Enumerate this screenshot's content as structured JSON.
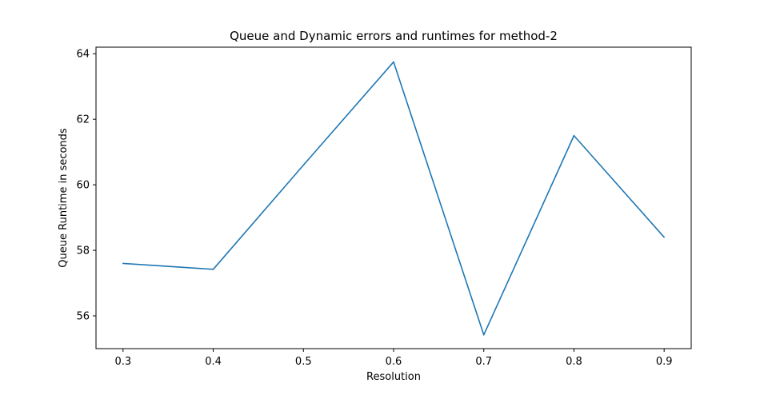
{
  "chart_data": {
    "type": "line",
    "title": "Queue and Dynamic errors and runtimes for method-2",
    "xlabel": "Resolution",
    "ylabel": "Queue Runtime in seconds",
    "x": [
      0.3,
      0.4,
      0.5,
      0.6,
      0.7,
      0.8,
      0.9
    ],
    "series": [
      {
        "values": [
          57.6,
          57.42,
          60.6,
          63.75,
          55.42,
          61.5,
          58.4
        ],
        "color": "#1f77b4"
      }
    ],
    "xlim": [
      0.27,
      0.93
    ],
    "ylim": [
      55.0,
      64.2
    ],
    "xticks": [
      0.3,
      0.4,
      0.5,
      0.6,
      0.7,
      0.8,
      0.9
    ],
    "xtick_labels": [
      "0.3",
      "0.4",
      "0.5",
      "0.6",
      "0.7",
      "0.8",
      "0.9"
    ],
    "yticks": [
      56,
      58,
      60,
      62,
      64
    ],
    "ytick_labels": [
      "56",
      "58",
      "60",
      "62",
      "64"
    ],
    "grid": false,
    "legend": "none"
  }
}
